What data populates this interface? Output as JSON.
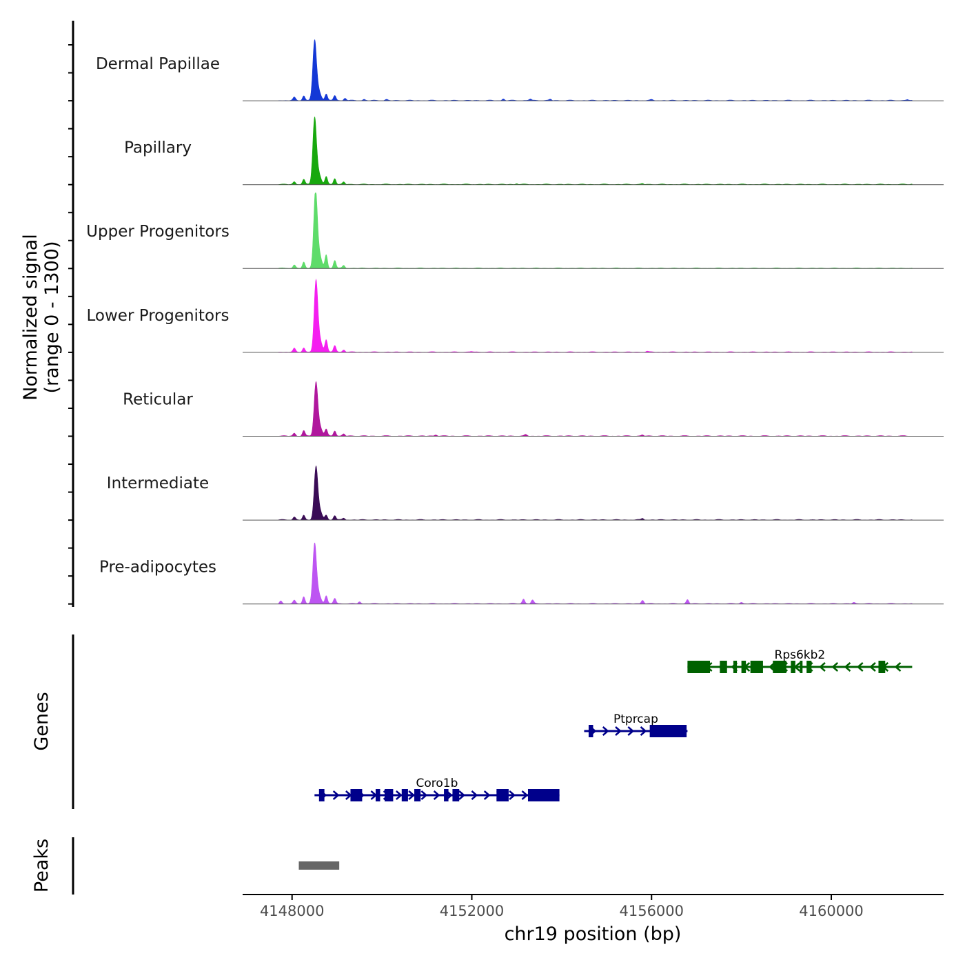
{
  "chart_data": {
    "type": "area",
    "title": "",
    "ylabel_line1": "Normalized signal",
    "ylabel_line2": "(range 0 - 1300)",
    "xlabel": "chr19 position (bp)",
    "xlim": [
      4146900,
      4162500
    ],
    "ylim": [
      0,
      1300
    ],
    "x_ticks": [
      4148000,
      4152000,
      4156000,
      4160000
    ],
    "x_tick_labels": [
      "4148000",
      "4152000",
      "4156000",
      "4160000"
    ],
    "signal_x_start": 4147700,
    "signal_x_end": 4161800,
    "series": [
      {
        "name": "Dermal Papillae",
        "color": "#1438d6",
        "peak_pos": 4148500,
        "peak_height": 1300,
        "bumps": [
          [
            4148050,
            80
          ],
          [
            4148260,
            120
          ],
          [
            4148760,
            160
          ],
          [
            4148950,
            130
          ],
          [
            4149180,
            60
          ],
          [
            4149600,
            30
          ],
          [
            4150100,
            25
          ],
          [
            4152700,
            40
          ],
          [
            4153300,
            40
          ],
          [
            4153750,
            30
          ],
          [
            4156000,
            20
          ],
          [
            4161700,
            25
          ]
        ]
      },
      {
        "name": "Papillary",
        "color": "#18a80e",
        "peak_pos": 4148500,
        "peak_height": 1450,
        "bumps": [
          [
            4148050,
            70
          ],
          [
            4148260,
            120
          ],
          [
            4148760,
            190
          ],
          [
            4148950,
            150
          ],
          [
            4149150,
            60
          ],
          [
            4153000,
            20
          ],
          [
            4155800,
            20
          ],
          [
            4161800,
            15
          ]
        ]
      },
      {
        "name": "Upper Progenitors",
        "color": "#5edc6a",
        "peak_pos": 4148520,
        "peak_height": 1700,
        "bumps": [
          [
            4148050,
            80
          ],
          [
            4148260,
            150
          ],
          [
            4148760,
            330
          ],
          [
            4148950,
            200
          ],
          [
            4149150,
            70
          ]
        ]
      },
      {
        "name": "Lower Progenitors",
        "color": "#f51ef0",
        "peak_pos": 4148530,
        "peak_height": 1550,
        "bumps": [
          [
            4148050,
            90
          ],
          [
            4148260,
            110
          ],
          [
            4148760,
            300
          ],
          [
            4148950,
            170
          ],
          [
            4149150,
            60
          ],
          [
            4152000,
            20
          ],
          [
            4155900,
            20
          ]
        ]
      },
      {
        "name": "Reticular",
        "color": "#b0179d",
        "peak_pos": 4148530,
        "peak_height": 1170,
        "bumps": [
          [
            4148050,
            70
          ],
          [
            4148260,
            130
          ],
          [
            4148760,
            160
          ],
          [
            4148950,
            130
          ],
          [
            4149150,
            50
          ],
          [
            4151200,
            30
          ],
          [
            4153200,
            30
          ],
          [
            4155800,
            25
          ]
        ]
      },
      {
        "name": "Intermediate",
        "color": "#3a0c56",
        "peak_pos": 4148530,
        "peak_height": 1150,
        "bumps": [
          [
            4148050,
            70
          ],
          [
            4148260,
            110
          ],
          [
            4148760,
            110
          ],
          [
            4148950,
            110
          ],
          [
            4149150,
            40
          ],
          [
            4155800,
            35
          ]
        ]
      },
      {
        "name": "Pre-adipocytes",
        "color": "#bd55f2",
        "peak_pos": 4148500,
        "peak_height": 1300,
        "bumps": [
          [
            4147750,
            70
          ],
          [
            4148050,
            80
          ],
          [
            4148260,
            180
          ],
          [
            4148760,
            200
          ],
          [
            4148950,
            140
          ],
          [
            4149500,
            50
          ],
          [
            4153150,
            120
          ],
          [
            4153350,
            90
          ],
          [
            4155800,
            90
          ],
          [
            4156800,
            100
          ],
          [
            4158000,
            40
          ],
          [
            4160500,
            30
          ]
        ]
      }
    ]
  },
  "genes_panel": {
    "label": "Genes",
    "genes": [
      {
        "name": "Rps6kb2",
        "color": "#006100",
        "strand": "-",
        "start": 4156800,
        "end": 4161800,
        "row": 0,
        "exons": [
          [
            4156800,
            4157300
          ],
          [
            4157520,
            4157680
          ],
          [
            4157820,
            4157900
          ],
          [
            4158000,
            4158100
          ],
          [
            4158200,
            4158480
          ],
          [
            4158700,
            4159000
          ],
          [
            4159100,
            4159200
          ],
          [
            4159300,
            4159360
          ],
          [
            4159450,
            4159560
          ],
          [
            4161050,
            4161200
          ]
        ]
      },
      {
        "name": "Ptprcap",
        "color": "#00008b",
        "strand": "+",
        "start": 4154500,
        "end": 4156800,
        "row": 1,
        "exons": [
          [
            4154600,
            4154700
          ],
          [
            4155960,
            4156780
          ]
        ]
      },
      {
        "name": "Coro1b",
        "color": "#00008b",
        "strand": "+",
        "start": 4148500,
        "end": 4153950,
        "row": 2,
        "exons": [
          [
            4148600,
            4148720
          ],
          [
            4149300,
            4149560
          ],
          [
            4149860,
            4149960
          ],
          [
            4150060,
            4150250
          ],
          [
            4150440,
            4150580
          ],
          [
            4150720,
            4150860
          ],
          [
            4151380,
            4151480
          ],
          [
            4151570,
            4151720
          ],
          [
            4152550,
            4152820
          ],
          [
            4153250,
            4153950
          ]
        ]
      }
    ]
  },
  "peaks_panel": {
    "label": "Peaks",
    "color": "#666666",
    "peaks": [
      [
        4148150,
        4149050
      ]
    ]
  }
}
